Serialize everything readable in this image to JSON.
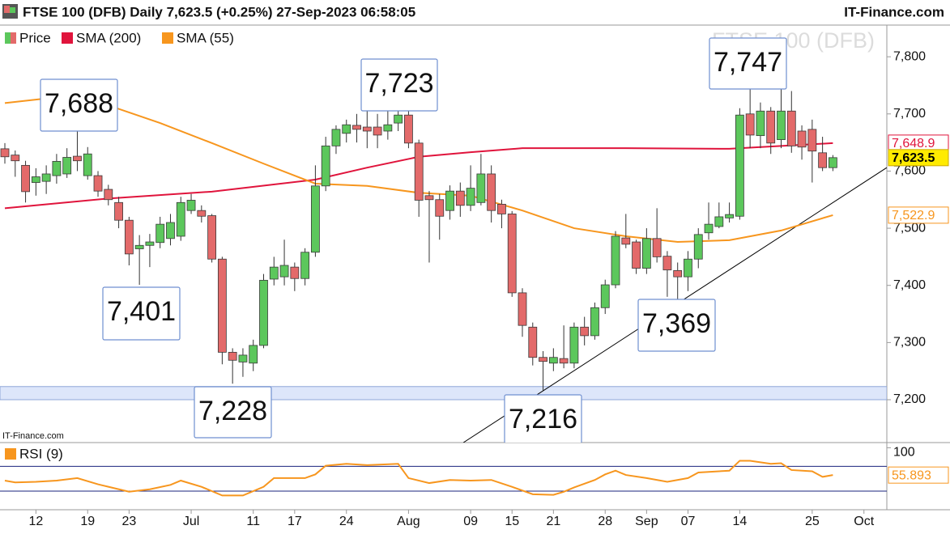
{
  "header": {
    "title": "FTSE 100 (DFB) Daily 7,623.5 (+0.25%) 27-Sep-2023 06:58:05",
    "site": "IT-Finance.com"
  },
  "chart_data": [
    {
      "type": "candlestick",
      "watermark": "FTSE 100 (DFB)",
      "source": "IT-Finance.com",
      "categories": [
        null,
        null,
        null,
        "12",
        null,
        null,
        null,
        null,
        "19",
        null,
        null,
        null,
        "23",
        null,
        null,
        null,
        null,
        null,
        "Jul",
        null,
        null,
        null,
        null,
        null,
        "11",
        null,
        null,
        null,
        "17",
        null,
        null,
        null,
        null,
        "24",
        null,
        null,
        null,
        null,
        null,
        "Aug",
        null,
        null,
        null,
        null,
        null,
        "09",
        null,
        null,
        null,
        "15",
        null,
        null,
        null,
        "21",
        null,
        null,
        null,
        null,
        "28",
        null,
        null,
        null,
        "Sep",
        null,
        null,
        null,
        "07",
        null,
        null,
        null,
        null,
        "14",
        null,
        null,
        null,
        null,
        null,
        null,
        "25",
        null,
        null,
        null,
        null,
        "Oct"
      ],
      "series": [
        {
          "name": "Price",
          "type": "candlestick",
          "up_color": "#5cc75c",
          "down_color": "#e36a6a",
          "open": [
            7639,
            7628,
            7610,
            7580,
            7582,
            7592,
            7595,
            7626,
            7592,
            7592,
            7568,
            7545,
            7514,
            7464,
            7470,
            7475,
            7482,
            7486,
            7531,
            7531,
            7522,
            7446,
            7283,
            7266,
            7264,
            7295,
            7411,
            7415,
            7432,
            7412,
            7458,
            7574,
            7644,
            7666,
            7680,
            7677,
            7677,
            7670,
            7684,
            7698,
            7649,
            7557,
            7550,
            7531,
            7565,
            7540,
            7545,
            7595,
            7542,
            7525,
            7387,
            7327,
            7274,
            7264,
            7272,
            7264,
            7327,
            7312,
            7361,
            7401,
            7483,
            7476,
            7430,
            7482,
            7451,
            7426,
            7415,
            7446,
            7492,
            7503,
            7518,
            7521,
            7700,
            7662,
            7705,
            7655,
            7705,
            7670,
            7673,
            7632,
            7606,
            null,
            null,
            null
          ],
          "high": [
            7649,
            7636,
            7618,
            7605,
            7610,
            7630,
            7640,
            7688,
            7642,
            7600,
            7576,
            7555,
            7520,
            7488,
            7490,
            7520,
            7525,
            7555,
            7560,
            7540,
            7525,
            7450,
            7290,
            7290,
            7305,
            7420,
            7450,
            7480,
            7440,
            7465,
            7610,
            7660,
            7680,
            7690,
            7700,
            7710,
            7700,
            7723,
            7715,
            7705,
            7655,
            7565,
            7560,
            7575,
            7580,
            7610,
            7630,
            7610,
            7550,
            7530,
            7395,
            7335,
            7285,
            7290,
            7330,
            7335,
            7345,
            7370,
            7410,
            7495,
            7525,
            7480,
            7500,
            7535,
            7460,
            7440,
            7460,
            7500,
            7545,
            7545,
            7545,
            7710,
            7747,
            7720,
            7712,
            7745,
            7740,
            7680,
            7690,
            7660,
            7628,
            null,
            null,
            null
          ],
          "low": [
            7613,
            7590,
            7545,
            7557,
            7560,
            7578,
            7588,
            7600,
            7585,
            7555,
            7540,
            7500,
            7435,
            7401,
            7432,
            7465,
            7470,
            7478,
            7525,
            7510,
            7440,
            7262,
            7228,
            7240,
            7250,
            7290,
            7400,
            7400,
            7390,
            7400,
            7450,
            7565,
            7630,
            7650,
            7650,
            7640,
            7640,
            7655,
            7670,
            7640,
            7520,
            7440,
            7480,
            7515,
            7520,
            7530,
            7540,
            7510,
            7500,
            7380,
            7310,
            7260,
            7216,
            7250,
            7255,
            7255,
            7295,
            7305,
            7350,
            7395,
            7465,
            7420,
            7420,
            7440,
            7380,
            7369,
            7390,
            7430,
            7480,
            7500,
            7510,
            7515,
            7640,
            7640,
            7630,
            7640,
            7632,
            7620,
            7580,
            7600,
            7600,
            null,
            null,
            null
          ],
          "close": [
            7625,
            7618,
            7564,
            7590,
            7595,
            7617,
            7624,
            7618,
            7630,
            7565,
            7550,
            7514,
            7455,
            7470,
            7476,
            7507,
            7510,
            7545,
            7549,
            7521,
            7446,
            7283,
            7269,
            7278,
            7295,
            7409,
            7432,
            7435,
            7412,
            7458,
            7574,
            7644,
            7673,
            7681,
            7673,
            7670,
            7663,
            7681,
            7698,
            7649,
            7549,
            7550,
            7521,
            7565,
            7540,
            7570,
            7595,
            7531,
            7525,
            7387,
            7330,
            7274,
            7267,
            7274,
            7264,
            7327,
            7312,
            7361,
            7401,
            7486,
            7472,
            7430,
            7482,
            7450,
            7427,
            7415,
            7446,
            7489,
            7507,
            7520,
            7524,
            7698,
            7663,
            7705,
            7649,
            7705,
            7644,
            7642,
            7635,
            7606,
            7623.5,
            null,
            null,
            null
          ]
        },
        {
          "name": "SMA (200)",
          "type": "line",
          "color": "#e0143c",
          "x": [
            0,
            10,
            20,
            30,
            35,
            40,
            45,
            50,
            60,
            70,
            80
          ],
          "values": [
            7535,
            7552,
            7564,
            7585,
            7606,
            7625,
            7633,
            7640,
            7640,
            7639,
            7648.9
          ],
          "last_label": {
            "value": 7648.9,
            "label": "7,648.9"
          }
        },
        {
          "name": "SMA (55)",
          "type": "line",
          "color": "#f7961e",
          "x": [
            0,
            5,
            10,
            15,
            20,
            25,
            30,
            35,
            40,
            45,
            50,
            55,
            60,
            65,
            70,
            75,
            80
          ],
          "values": [
            7719,
            7729,
            7715,
            7684,
            7649,
            7613,
            7578,
            7574,
            7562,
            7557,
            7531,
            7500,
            7486,
            7476,
            7479,
            7496,
            7522.9
          ],
          "last_label": {
            "value": 7522.9,
            "label": "7,522.9"
          }
        }
      ],
      "current_price": {
        "value": 7623.5,
        "label": "7,623.5"
      },
      "ylim": [
        7125,
        7854
      ],
      "yticks": [
        {
          "value": 7200,
          "label": "7,200"
        },
        {
          "value": 7300,
          "label": "7,300"
        },
        {
          "value": 7400,
          "label": "7,400"
        },
        {
          "value": 7500,
          "label": "7,500"
        },
        {
          "value": 7600,
          "label": "7,600"
        },
        {
          "value": 7700,
          "label": "7,700"
        },
        {
          "value": 7800,
          "label": "7,800"
        }
      ],
      "support_zone": [
        7200,
        7223
      ],
      "trendline": {
        "color": "#000000",
        "x": [
          44.3,
          85.2
        ],
        "values": [
          7125,
          7606
        ]
      },
      "annotations": [
        "7,688",
        "7,723",
        "7,747",
        "7,401",
        "7,369",
        "7,228",
        "7,216"
      ]
    },
    {
      "type": "line",
      "name": "RSI (9)",
      "color": "#f7961e",
      "level_color": "#1a237e",
      "x": [
        0,
        1,
        3,
        5,
        7,
        9,
        10,
        12,
        14,
        16,
        17,
        19,
        21,
        23,
        25,
        26,
        27,
        29,
        30,
        31,
        33,
        35,
        38,
        39,
        41,
        43,
        45,
        47,
        49,
        51,
        53,
        54,
        55,
        57,
        58,
        59,
        60,
        62,
        64,
        66,
        67,
        70,
        71,
        72,
        74,
        75,
        76,
        78,
        79,
        80
      ],
      "values": [
        47,
        44,
        45,
        47,
        51,
        41,
        37,
        29,
        33,
        40,
        47,
        37,
        23,
        23,
        37,
        51,
        51,
        51,
        57,
        71,
        74,
        72,
        74,
        51,
        43,
        48,
        47,
        48,
        37,
        25,
        24,
        29,
        36,
        48,
        57,
        63,
        56,
        51,
        45,
        51,
        60,
        63,
        79,
        79,
        74,
        75,
        64,
        62,
        53,
        55.893
      ],
      "last_label": {
        "value": 55.893,
        "label": "55.893"
      },
      "ylim": [
        0,
        107
      ],
      "yticks": [
        100
      ],
      "levels": [
        70,
        30
      ]
    }
  ]
}
